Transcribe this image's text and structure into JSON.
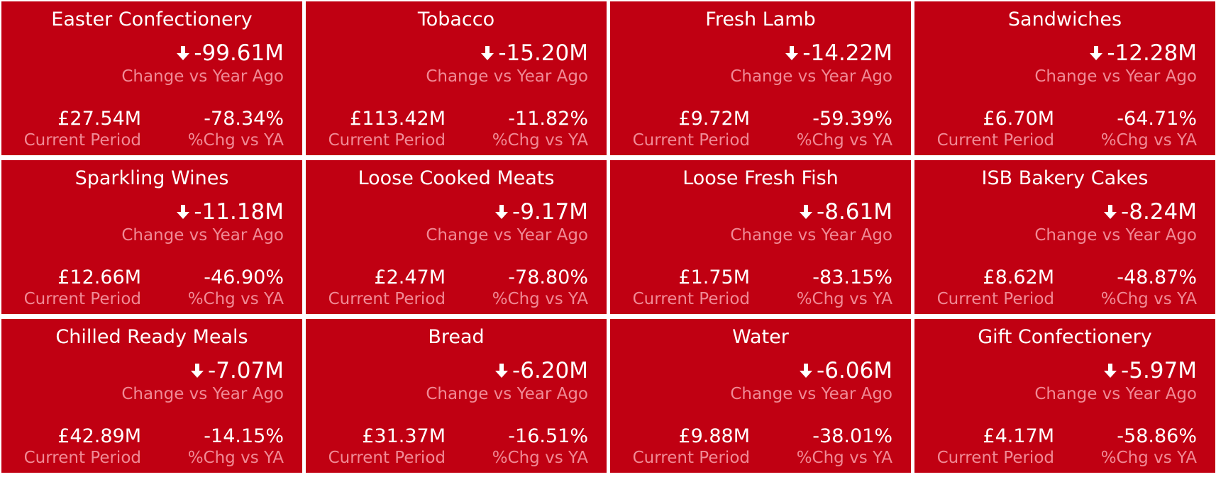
{
  "colors": {
    "card_background": "#c00012",
    "primary_text": "#ffffff",
    "caption_text": "#f08a96",
    "separator": "#ffffff"
  },
  "icons": {
    "change_direction": "arrow-down-icon"
  },
  "cards": [
    {
      "title": "Easter Confectionery",
      "change": "-99.61M",
      "change_label": "Change vs Year Ago",
      "current": "£27.54M",
      "current_label": "Current Period",
      "pct": "-78.34%",
      "pct_label": "%Chg vs YA"
    },
    {
      "title": "Tobacco",
      "change": "-15.20M",
      "change_label": "Change vs Year Ago",
      "current": "£113.42M",
      "current_label": "Current Period",
      "pct": "-11.82%",
      "pct_label": "%Chg vs YA"
    },
    {
      "title": "Fresh Lamb",
      "change": "-14.22M",
      "change_label": "Change vs Year Ago",
      "current": "£9.72M",
      "current_label": "Current Period",
      "pct": "-59.39%",
      "pct_label": "%Chg vs YA"
    },
    {
      "title": "Sandwiches",
      "change": "-12.28M",
      "change_label": "Change vs Year Ago",
      "current": "£6.70M",
      "current_label": "Current Period",
      "pct": "-64.71%",
      "pct_label": "%Chg vs YA"
    },
    {
      "title": "Sparkling Wines",
      "change": "-11.18M",
      "change_label": "Change vs Year Ago",
      "current": "£12.66M",
      "current_label": "Current Period",
      "pct": "-46.90%",
      "pct_label": "%Chg vs YA"
    },
    {
      "title": "Loose Cooked Meats",
      "change": "-9.17M",
      "change_label": "Change vs Year Ago",
      "current": "£2.47M",
      "current_label": "Current Period",
      "pct": "-78.80%",
      "pct_label": "%Chg vs YA"
    },
    {
      "title": "Loose Fresh Fish",
      "change": "-8.61M",
      "change_label": "Change vs Year Ago",
      "current": "£1.75M",
      "current_label": "Current Period",
      "pct": "-83.15%",
      "pct_label": "%Chg vs YA"
    },
    {
      "title": "ISB Bakery Cakes",
      "change": "-8.24M",
      "change_label": "Change vs Year Ago",
      "current": "£8.62M",
      "current_label": "Current Period",
      "pct": "-48.87%",
      "pct_label": "%Chg vs YA"
    },
    {
      "title": "Chilled Ready Meals",
      "change": "-7.07M",
      "change_label": "Change vs Year Ago",
      "current": "£42.89M",
      "current_label": "Current Period",
      "pct": "-14.15%",
      "pct_label": "%Chg vs YA"
    },
    {
      "title": "Bread",
      "change": "-6.20M",
      "change_label": "Change vs Year Ago",
      "current": "£31.37M",
      "current_label": "Current Period",
      "pct": "-16.51%",
      "pct_label": "%Chg vs YA"
    },
    {
      "title": "Water",
      "change": "-6.06M",
      "change_label": "Change vs Year Ago",
      "current": "£9.88M",
      "current_label": "Current Period",
      "pct": "-38.01%",
      "pct_label": "%Chg vs YA"
    },
    {
      "title": "Gift Confectionery",
      "change": "-5.97M",
      "change_label": "Change vs Year Ago",
      "current": "£4.17M",
      "current_label": "Current Period",
      "pct": "-58.86%",
      "pct_label": "%Chg vs YA"
    }
  ]
}
